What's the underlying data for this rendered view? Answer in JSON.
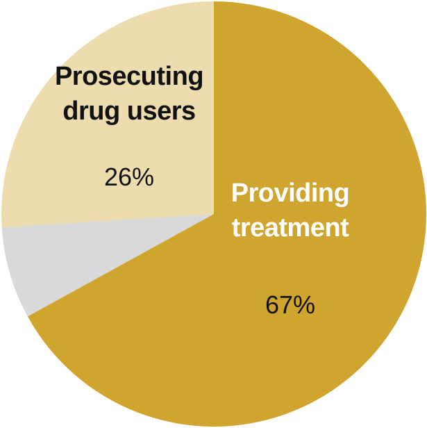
{
  "chart_data": {
    "type": "pie",
    "categories": [
      "Providing treatment",
      null,
      "Prosecuting drug users"
    ],
    "values": [
      67,
      7,
      26
    ],
    "value_labels": [
      "67%",
      null,
      "26%"
    ],
    "colors": [
      "#cfa52f",
      "#d9d9d9",
      "#ecdcae"
    ],
    "start_angle": 0,
    "direction": "clockwise"
  }
}
